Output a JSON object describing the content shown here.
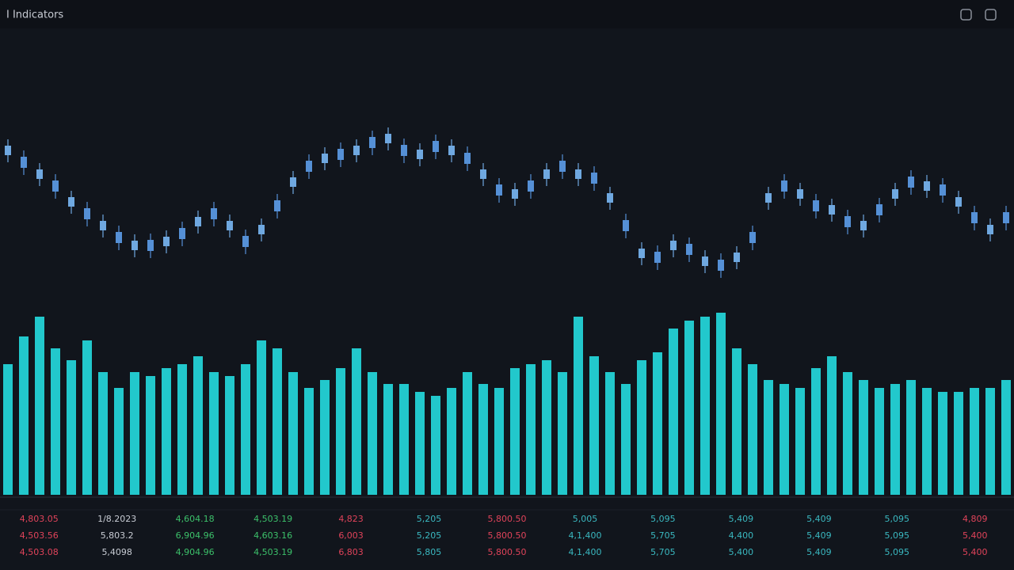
{
  "header": {
    "title": "I Indicators"
  },
  "chart_data": {
    "type": "candlestick",
    "ylim": [
      0,
      220
    ],
    "up_color": "#6fa8e0",
    "down_color": "#5590d6",
    "open": [
      164,
      162,
      134,
      132,
      99,
      97,
      69,
      67,
      44,
      57,
      49,
      72,
      74,
      97,
      69,
      62,
      64,
      107,
      124,
      157,
      154,
      172,
      164,
      187,
      179,
      177,
      159,
      182,
      164,
      167,
      134,
      127,
      109,
      132,
      134,
      157,
      134,
      142,
      104,
      82,
      34,
      42,
      44,
      52,
      24,
      32,
      29,
      67,
      104,
      132,
      109,
      107,
      89,
      87,
      69,
      102,
      109,
      137,
      119,
      127,
      99,
      92,
      64,
      92
    ],
    "high": [
      184,
      170,
      154,
      140,
      119,
      105,
      89,
      75,
      64,
      65,
      69,
      80,
      94,
      105,
      89,
      70,
      84,
      115,
      144,
      165,
      174,
      180,
      184,
      195,
      199,
      185,
      179,
      190,
      184,
      175,
      154,
      135,
      129,
      140,
      154,
      165,
      154,
      150,
      124,
      90,
      54,
      50,
      64,
      60,
      44,
      40,
      49,
      75,
      124,
      140,
      129,
      115,
      109,
      95,
      89,
      110,
      129,
      145,
      139,
      135,
      119,
      100,
      84,
      100
    ],
    "low": [
      155,
      139,
      125,
      109,
      90,
      74,
      60,
      44,
      35,
      34,
      40,
      49,
      65,
      74,
      60,
      39,
      55,
      84,
      115,
      134,
      145,
      149,
      155,
      164,
      170,
      154,
      150,
      159,
      155,
      144,
      125,
      104,
      100,
      109,
      125,
      134,
      125,
      119,
      95,
      59,
      25,
      19,
      35,
      29,
      15,
      9,
      20,
      44,
      95,
      109,
      100,
      84,
      80,
      64,
      60,
      79,
      100,
      114,
      110,
      104,
      90,
      69,
      55,
      69
    ],
    "close": [
      176,
      148,
      146,
      118,
      111,
      83,
      81,
      53,
      56,
      43,
      61,
      58,
      86,
      83,
      81,
      48,
      76,
      93,
      136,
      143,
      166,
      158,
      176,
      173,
      191,
      163,
      171,
      168,
      176,
      153,
      146,
      113,
      121,
      118,
      146,
      143,
      146,
      128,
      116,
      68,
      46,
      28,
      56,
      38,
      36,
      18,
      41,
      53,
      116,
      118,
      121,
      93,
      101,
      73,
      81,
      88,
      121,
      123,
      131,
      113,
      111,
      78,
      76,
      78
    ],
    "volume": {
      "color": "#22c8cc",
      "ylim": [
        0,
        240
      ],
      "values": [
        165,
        200,
        225,
        185,
        170,
        195,
        155,
        135,
        155,
        150,
        160,
        165,
        175,
        155,
        150,
        165,
        195,
        185,
        155,
        135,
        145,
        160,
        185,
        155,
        140,
        140,
        130,
        125,
        135,
        155,
        140,
        135,
        160,
        165,
        170,
        155,
        225,
        175,
        155,
        140,
        170,
        180,
        210,
        220,
        225,
        230,
        185,
        165,
        145,
        140,
        135,
        160,
        175,
        155,
        145,
        135,
        140,
        145,
        135,
        130,
        130,
        135,
        135,
        145
      ]
    }
  },
  "footer": {
    "colors": [
      "#e0435a",
      "#c8ccd4",
      "#3cc06a",
      "#3cc06a",
      "#e0435a",
      "#3ab8c0",
      "#e0435a",
      "#3ab8c0",
      "#3ab8c0",
      "#3ab8c0",
      "#3ab8c0",
      "#3ab8c0",
      "#e0435a"
    ],
    "rows": [
      [
        "4,803.05",
        "1/8.2023",
        "4,604.18",
        "4,503.19",
        "4,823",
        "5,205",
        "5,800.50",
        "5,005",
        "5,095",
        "5,409",
        "5,409",
        "5,095",
        "4,809"
      ],
      [
        "4,503.56",
        "5,803.2",
        "6,904.96",
        "4,603.16",
        "6,003",
        "5,205",
        "5,800.50",
        "4,1,400",
        "5,705",
        "4,400",
        "5,409",
        "5,095",
        "5,400"
      ],
      [
        "4,503.08",
        "5,4098",
        "4,904.96",
        "4,503.19",
        "6,803",
        "5,805",
        "5,800.50",
        "4,1,400",
        "5,705",
        "5,400",
        "5,409",
        "5,095",
        "5,400"
      ]
    ]
  }
}
